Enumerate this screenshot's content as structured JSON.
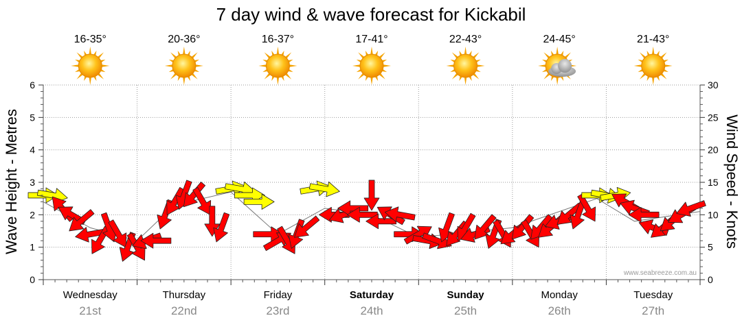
{
  "chart_data": {
    "type": "line",
    "title": "7 day wind & wave forecast for Kickabil",
    "ylabel": "Wave Height - Metres",
    "y2label": "Wind Speed - Knots",
    "ylim": [
      0,
      6
    ],
    "y2lim": [
      0,
      30
    ],
    "yticks": [
      "0",
      "1",
      "2",
      "3",
      "4",
      "5",
      "6"
    ],
    "y2ticks": [
      "0",
      "5",
      "10",
      "15",
      "20",
      "25",
      "30"
    ],
    "watermark": "www.seabreeze.com.au",
    "days": [
      {
        "name": "Wednesday",
        "date": "21st",
        "temp": "16-35°",
        "icon": "sun-icon",
        "bold": false
      },
      {
        "name": "Thursday",
        "date": "22nd",
        "temp": "20-36°",
        "icon": "sun-icon",
        "bold": false
      },
      {
        "name": "Friday",
        "date": "23rd",
        "temp": "16-37°",
        "icon": "sun-icon",
        "bold": false
      },
      {
        "name": "Saturday",
        "date": "24th",
        "temp": "17-41°",
        "icon": "sun-icon",
        "bold": true
      },
      {
        "name": "Sunday",
        "date": "25th",
        "temp": "22-43°",
        "icon": "sun-icon",
        "bold": true
      },
      {
        "name": "Monday",
        "date": "26th",
        "temp": "24-45°",
        "icon": "sun-cloud-icon",
        "bold": false
      },
      {
        "name": "Tuesday",
        "date": "27th",
        "temp": "21-43°",
        "icon": "sun-icon",
        "bold": false
      }
    ],
    "series": [
      {
        "name": "wind",
        "unit": "knots",
        "colors": {
          "strong": "#ff0000",
          "light": "#ffff00",
          "outline": "#222222"
        },
        "points": [
          {
            "t": 0.0,
            "speed": 13,
            "dir": 90
          },
          {
            "t": 0.1,
            "speed": 13,
            "dir": 100
          },
          {
            "t": 0.2,
            "speed": 11,
            "dir": 320
          },
          {
            "t": 0.3,
            "speed": 10,
            "dir": 300
          },
          {
            "t": 0.4,
            "speed": 9,
            "dir": 230
          },
          {
            "t": 0.5,
            "speed": 7,
            "dir": 260
          },
          {
            "t": 0.6,
            "speed": 6,
            "dir": 210
          },
          {
            "t": 0.7,
            "speed": 8,
            "dir": 160
          },
          {
            "t": 0.8,
            "speed": 7,
            "dir": 150
          },
          {
            "t": 0.9,
            "speed": 5,
            "dir": 200
          },
          {
            "t": 1.0,
            "speed": 5,
            "dir": 150
          },
          {
            "t": 1.1,
            "speed": 6,
            "dir": 250
          },
          {
            "t": 1.2,
            "speed": 6,
            "dir": 270
          },
          {
            "t": 1.3,
            "speed": 10,
            "dir": 200
          },
          {
            "t": 1.4,
            "speed": 12,
            "dir": 210
          },
          {
            "t": 1.5,
            "speed": 13,
            "dir": 200
          },
          {
            "t": 1.6,
            "speed": 13,
            "dir": 220
          },
          {
            "t": 1.7,
            "speed": 12,
            "dir": 150
          },
          {
            "t": 1.8,
            "speed": 9,
            "dir": 180
          },
          {
            "t": 1.9,
            "speed": 8,
            "dir": 200
          },
          {
            "t": 2.0,
            "speed": 14,
            "dir": 80
          },
          {
            "t": 2.1,
            "speed": 14,
            "dir": 100
          },
          {
            "t": 2.2,
            "speed": 13,
            "dir": 90
          },
          {
            "t": 2.3,
            "speed": 12,
            "dir": 90
          },
          {
            "t": 2.4,
            "speed": 7,
            "dir": 90
          },
          {
            "t": 2.5,
            "speed": 6,
            "dir": 60
          },
          {
            "t": 2.6,
            "speed": 6,
            "dir": 150
          },
          {
            "t": 2.7,
            "speed": 7,
            "dir": 200
          },
          {
            "t": 2.8,
            "speed": 8,
            "dir": 230
          },
          {
            "t": 2.9,
            "speed": 14,
            "dir": 80
          },
          {
            "t": 3.0,
            "speed": 14,
            "dir": 100
          },
          {
            "t": 3.1,
            "speed": 10,
            "dir": 270
          },
          {
            "t": 3.2,
            "speed": 10,
            "dir": 250
          },
          {
            "t": 3.3,
            "speed": 11,
            "dir": 270
          },
          {
            "t": 3.4,
            "speed": 10,
            "dir": 270
          },
          {
            "t": 3.5,
            "speed": 13,
            "dir": 180
          },
          {
            "t": 3.6,
            "speed": 9,
            "dir": 270
          },
          {
            "t": 3.7,
            "speed": 10,
            "dir": 300
          },
          {
            "t": 3.8,
            "speed": 10,
            "dir": 280
          },
          {
            "t": 3.9,
            "speed": 7,
            "dir": 90
          },
          {
            "t": 4.0,
            "speed": 7,
            "dir": 60
          },
          {
            "t": 4.1,
            "speed": 6,
            "dir": 100
          },
          {
            "t": 4.2,
            "speed": 6,
            "dir": 110
          },
          {
            "t": 4.3,
            "speed": 8,
            "dir": 200
          },
          {
            "t": 4.4,
            "speed": 7,
            "dir": 220
          },
          {
            "t": 4.5,
            "speed": 8,
            "dir": 210
          },
          {
            "t": 4.6,
            "speed": 7,
            "dir": 250
          },
          {
            "t": 4.7,
            "speed": 8,
            "dir": 220
          },
          {
            "t": 4.8,
            "speed": 7,
            "dir": 200
          },
          {
            "t": 4.9,
            "speed": 7,
            "dir": 150
          },
          {
            "t": 5.0,
            "speed": 7,
            "dir": 230
          },
          {
            "t": 5.1,
            "speed": 8,
            "dir": 220
          },
          {
            "t": 5.2,
            "speed": 7,
            "dir": 150
          },
          {
            "t": 5.3,
            "speed": 8,
            "dir": 220
          },
          {
            "t": 5.4,
            "speed": 8,
            "dir": 230
          },
          {
            "t": 5.5,
            "speed": 9,
            "dir": 250
          },
          {
            "t": 5.6,
            "speed": 10,
            "dir": 230
          },
          {
            "t": 5.7,
            "speed": 10,
            "dir": 200
          },
          {
            "t": 5.8,
            "speed": 11,
            "dir": 150
          },
          {
            "t": 5.9,
            "speed": 13,
            "dir": 90
          },
          {
            "t": 6.0,
            "speed": 13,
            "dir": 100
          },
          {
            "t": 6.1,
            "speed": 13,
            "dir": 80
          },
          {
            "t": 6.2,
            "speed": 12,
            "dir": 300
          },
          {
            "t": 6.3,
            "speed": 11,
            "dir": 290
          },
          {
            "t": 6.4,
            "speed": 10,
            "dir": 270
          },
          {
            "t": 6.5,
            "speed": 8,
            "dir": 290
          },
          {
            "t": 6.6,
            "speed": 8,
            "dir": 230
          },
          {
            "t": 6.7,
            "speed": 9,
            "dir": 230
          },
          {
            "t": 6.8,
            "speed": 10,
            "dir": 240
          },
          {
            "t": 6.9,
            "speed": 11,
            "dir": 250
          }
        ]
      },
      {
        "name": "wave_height",
        "unit": "metres",
        "points": [
          {
            "t": 0.0,
            "h": 2.4
          },
          {
            "t": 0.5,
            "h": 1.6
          },
          {
            "t": 1.0,
            "h": 1.2
          },
          {
            "t": 1.4,
            "h": 2.3
          },
          {
            "t": 2.0,
            "h": 2.7
          },
          {
            "t": 2.5,
            "h": 1.4
          },
          {
            "t": 3.0,
            "h": 2.2
          },
          {
            "t": 3.5,
            "h": 2.0
          },
          {
            "t": 4.0,
            "h": 1.3
          },
          {
            "t": 5.0,
            "h": 1.6
          },
          {
            "t": 5.9,
            "h": 2.5
          },
          {
            "t": 6.3,
            "h": 1.8
          },
          {
            "t": 7.0,
            "h": 2.1
          }
        ]
      }
    ]
  }
}
